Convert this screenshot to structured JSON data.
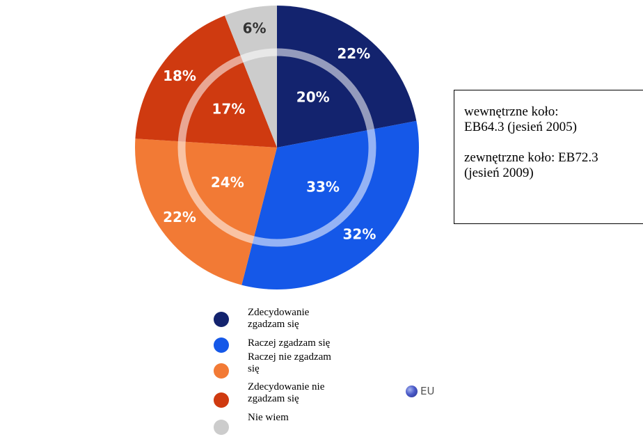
{
  "note": {
    "inner_ring": "wewnętrzne koło:\nEB64.3 (jesień 2005)",
    "outer_ring": "zewnętrzne koło: EB72.3\n(jesień 2009)"
  },
  "legend": {
    "items": [
      {
        "label": "Zdecydowanie\nzgadzam się",
        "color": "#13236e"
      },
      {
        "label": "Raczej zgadzam się",
        "color": "#1558e8"
      },
      {
        "label": "Raczej nie zgadzam\nsię",
        "color": "#f27a35"
      },
      {
        "label": "Zdecydowanie nie\nzgadzam się",
        "color": "#cf3a10"
      },
      {
        "label": "Nie wiem",
        "color": "#cccccc"
      }
    ]
  },
  "eu_badge": {
    "label": "EU",
    "icon": "globe-icon"
  },
  "chart_data": {
    "type": "pie",
    "categories": [
      "Zdecydowanie zgadzam się",
      "Raczej zgadzam się",
      "Raczej nie zgadzam się",
      "Zdecydowanie nie zgadzam się",
      "Nie wiem"
    ],
    "colors": [
      "#13236e",
      "#1558e8",
      "#f27a35",
      "#cf3a10",
      "#cccccc"
    ],
    "series": [
      {
        "name": "EB72.3 (jesień 2009)",
        "ring": "outer",
        "values": [
          22,
          32,
          22,
          18,
          6
        ],
        "labels": [
          "22%",
          "32%",
          "22%",
          "18%",
          "6%"
        ]
      },
      {
        "name": "EB64.3 (jesień 2005)",
        "ring": "inner",
        "values": [
          20,
          33,
          24,
          17,
          6
        ],
        "labels": [
          "20%",
          "33%",
          "24%",
          "17%",
          ""
        ]
      }
    ]
  }
}
